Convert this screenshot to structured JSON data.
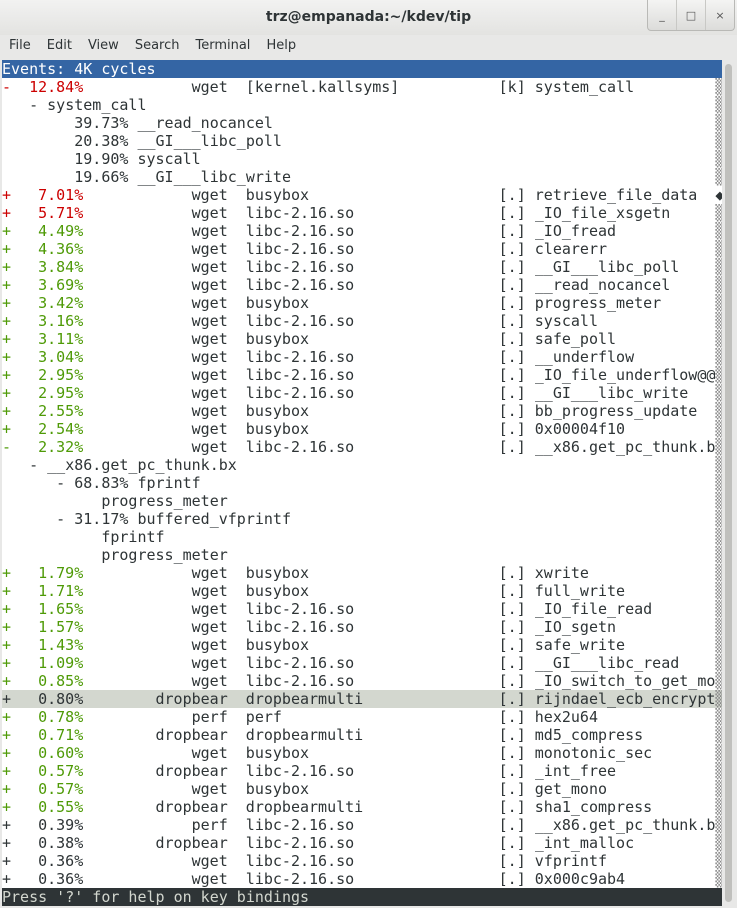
{
  "window": {
    "title": "trz@empanada:~/kdev/tip",
    "buttons": {
      "minimize": "_",
      "maximize": "□",
      "close": "×"
    }
  },
  "menu": [
    "File",
    "Edit",
    "View",
    "Search",
    "Terminal",
    "Help"
  ],
  "header": "Events: 4K cycles",
  "status": "Press '?' for help on key bindings",
  "colors": {
    "high": "#cc0000",
    "mid": "#4e9a06",
    "header_bg": "#3465a4",
    "selected_bg": "#d3d7cf",
    "status_bg": "#2e3436"
  },
  "lines": [
    {
      "t": "e",
      "m": "-",
      "p": "12.84%",
      "c": "wget",
      "d": "[kernel.kallsyms]",
      "l": "[k]",
      "s": "system_call",
      "col": "red"
    },
    {
      "t": "c",
      "col": 3,
      "x": "- system_call"
    },
    {
      "t": "c",
      "col": 8,
      "x": "39.73% __read_nocancel"
    },
    {
      "t": "c",
      "col": 8,
      "x": "20.38% __GI___libc_poll"
    },
    {
      "t": "c",
      "col": 8,
      "x": "19.90% syscall"
    },
    {
      "t": "c",
      "col": 8,
      "x": "19.66% __GI___libc_write"
    },
    {
      "t": "e",
      "m": "+",
      "p": "7.01%",
      "c": "wget",
      "d": "busybox",
      "l": "[.]",
      "s": "retrieve_file_data",
      "col": "red",
      "sb": "◆"
    },
    {
      "t": "e",
      "m": "+",
      "p": "5.71%",
      "c": "wget",
      "d": "libc-2.16.so",
      "l": "[.]",
      "s": "_IO_file_xsgetn",
      "col": "red"
    },
    {
      "t": "e",
      "m": "+",
      "p": "4.49%",
      "c": "wget",
      "d": "libc-2.16.so",
      "l": "[.]",
      "s": "_IO_fread",
      "col": "green"
    },
    {
      "t": "e",
      "m": "+",
      "p": "4.36%",
      "c": "wget",
      "d": "libc-2.16.so",
      "l": "[.]",
      "s": "clearerr",
      "col": "green"
    },
    {
      "t": "e",
      "m": "+",
      "p": "3.84%",
      "c": "wget",
      "d": "libc-2.16.so",
      "l": "[.]",
      "s": "__GI___libc_poll",
      "col": "green"
    },
    {
      "t": "e",
      "m": "+",
      "p": "3.69%",
      "c": "wget",
      "d": "libc-2.16.so",
      "l": "[.]",
      "s": "__read_nocancel",
      "col": "green"
    },
    {
      "t": "e",
      "m": "+",
      "p": "3.42%",
      "c": "wget",
      "d": "busybox",
      "l": "[.]",
      "s": "progress_meter",
      "col": "green"
    },
    {
      "t": "e",
      "m": "+",
      "p": "3.16%",
      "c": "wget",
      "d": "libc-2.16.so",
      "l": "[.]",
      "s": "syscall",
      "col": "green"
    },
    {
      "t": "e",
      "m": "+",
      "p": "3.11%",
      "c": "wget",
      "d": "busybox",
      "l": "[.]",
      "s": "safe_poll",
      "col": "green"
    },
    {
      "t": "e",
      "m": "+",
      "p": "3.04%",
      "c": "wget",
      "d": "libc-2.16.so",
      "l": "[.]",
      "s": "__underflow",
      "col": "green"
    },
    {
      "t": "e",
      "m": "+",
      "p": "2.95%",
      "c": "wget",
      "d": "libc-2.16.so",
      "l": "[.]",
      "s": "_IO_file_underflow@@",
      "col": "green"
    },
    {
      "t": "e",
      "m": "+",
      "p": "2.95%",
      "c": "wget",
      "d": "libc-2.16.so",
      "l": "[.]",
      "s": "__GI___libc_write",
      "col": "green"
    },
    {
      "t": "e",
      "m": "+",
      "p": "2.55%",
      "c": "wget",
      "d": "busybox",
      "l": "[.]",
      "s": "bb_progress_update",
      "col": "green"
    },
    {
      "t": "e",
      "m": "+",
      "p": "2.54%",
      "c": "wget",
      "d": "busybox",
      "l": "[.]",
      "s": "0x00004f10",
      "col": "green"
    },
    {
      "t": "e",
      "m": "-",
      "p": "2.32%",
      "c": "wget",
      "d": "libc-2.16.so",
      "l": "[.]",
      "s": "__x86.get_pc_thunk.b",
      "col": "green"
    },
    {
      "t": "c",
      "col": 3,
      "x": "- __x86.get_pc_thunk.bx"
    },
    {
      "t": "c",
      "col": 6,
      "x": "- 68.83% fprintf"
    },
    {
      "t": "c",
      "col": 11,
      "x": "progress_meter"
    },
    {
      "t": "c",
      "col": 6,
      "x": "- 31.17% buffered_vfprintf"
    },
    {
      "t": "c",
      "col": 11,
      "x": "fprintf"
    },
    {
      "t": "c",
      "col": 11,
      "x": "progress_meter"
    },
    {
      "t": "e",
      "m": "+",
      "p": "1.79%",
      "c": "wget",
      "d": "busybox",
      "l": "[.]",
      "s": "xwrite",
      "col": "green"
    },
    {
      "t": "e",
      "m": "+",
      "p": "1.71%",
      "c": "wget",
      "d": "busybox",
      "l": "[.]",
      "s": "full_write",
      "col": "green"
    },
    {
      "t": "e",
      "m": "+",
      "p": "1.65%",
      "c": "wget",
      "d": "libc-2.16.so",
      "l": "[.]",
      "s": "_IO_file_read",
      "col": "green"
    },
    {
      "t": "e",
      "m": "+",
      "p": "1.57%",
      "c": "wget",
      "d": "libc-2.16.so",
      "l": "[.]",
      "s": "_IO_sgetn",
      "col": "green"
    },
    {
      "t": "e",
      "m": "+",
      "p": "1.43%",
      "c": "wget",
      "d": "busybox",
      "l": "[.]",
      "s": "safe_write",
      "col": "green"
    },
    {
      "t": "e",
      "m": "+",
      "p": "1.09%",
      "c": "wget",
      "d": "libc-2.16.so",
      "l": "[.]",
      "s": "__GI___libc_read",
      "col": "green"
    },
    {
      "t": "e",
      "m": "+",
      "p": "0.85%",
      "c": "wget",
      "d": "libc-2.16.so",
      "l": "[.]",
      "s": "_IO_switch_to_get_mo",
      "col": "green"
    },
    {
      "t": "e",
      "m": "+",
      "p": "0.80%",
      "c": "dropbear",
      "d": "dropbearmulti",
      "l": "[.]",
      "s": "rijndael_ecb_encrypt",
      "col": "",
      "selected": true
    },
    {
      "t": "e",
      "m": "+",
      "p": "0.78%",
      "c": "perf",
      "d": "perf",
      "l": "[.]",
      "s": "hex2u64",
      "col": "green"
    },
    {
      "t": "e",
      "m": "+",
      "p": "0.71%",
      "c": "dropbear",
      "d": "dropbearmulti",
      "l": "[.]",
      "s": "md5_compress",
      "col": "green"
    },
    {
      "t": "e",
      "m": "+",
      "p": "0.60%",
      "c": "wget",
      "d": "busybox",
      "l": "[.]",
      "s": "monotonic_sec",
      "col": "green"
    },
    {
      "t": "e",
      "m": "+",
      "p": "0.57%",
      "c": "dropbear",
      "d": "libc-2.16.so",
      "l": "[.]",
      "s": "_int_free",
      "col": "green"
    },
    {
      "t": "e",
      "m": "+",
      "p": "0.57%",
      "c": "wget",
      "d": "busybox",
      "l": "[.]",
      "s": "get_mono",
      "col": "green"
    },
    {
      "t": "e",
      "m": "+",
      "p": "0.55%",
      "c": "dropbear",
      "d": "dropbearmulti",
      "l": "[.]",
      "s": "sha1_compress",
      "col": "green"
    },
    {
      "t": "e",
      "m": "+",
      "p": "0.39%",
      "c": "perf",
      "d": "libc-2.16.so",
      "l": "[.]",
      "s": "__x86.get_pc_thunk.b",
      "col": ""
    },
    {
      "t": "e",
      "m": "+",
      "p": "0.38%",
      "c": "dropbear",
      "d": "libc-2.16.so",
      "l": "[.]",
      "s": "_int_malloc",
      "col": ""
    },
    {
      "t": "e",
      "m": "+",
      "p": "0.36%",
      "c": "wget",
      "d": "libc-2.16.so",
      "l": "[.]",
      "s": "vfprintf",
      "col": ""
    },
    {
      "t": "e",
      "m": "+",
      "p": "0.36%",
      "c": "wget",
      "d": "libc-2.16.so",
      "l": "[.]",
      "s": "0x000c9ab4",
      "col": ""
    }
  ]
}
